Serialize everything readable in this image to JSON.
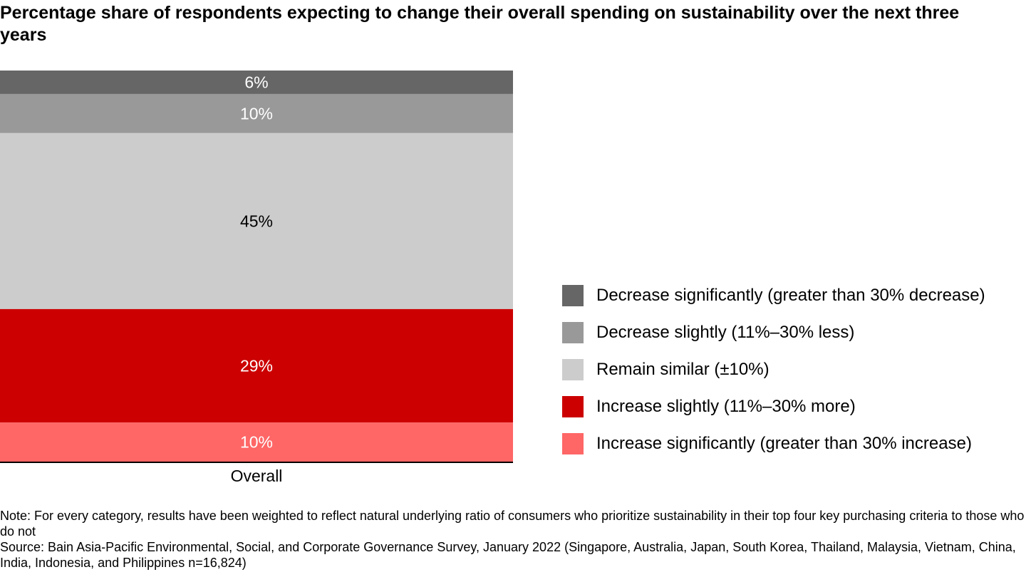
{
  "title": "Percentage share of respondents expecting to change their overall spending on sustainability over the next three years",
  "chart_data": {
    "type": "bar",
    "stacked": true,
    "orientation": "vertical",
    "categories": [
      "Overall"
    ],
    "ylim": [
      0,
      100
    ],
    "series": [
      {
        "name": "Decrease significantly (greater than 30% decrease)",
        "values": [
          6
        ],
        "label": "6%",
        "color": "#666666",
        "label_color": "#ffffff"
      },
      {
        "name": "Decrease slightly (11%–30% less)",
        "values": [
          10
        ],
        "label": "10%",
        "color": "#999999",
        "label_color": "#ffffff"
      },
      {
        "name": "Remain similar (±10%)",
        "values": [
          45
        ],
        "label": "45%",
        "color": "#cccccc",
        "label_color": "#000000"
      },
      {
        "name": "Increase slightly (11%–30% more)",
        "values": [
          29
        ],
        "label": "29%",
        "color": "#cc0000",
        "label_color": "#ffffff"
      },
      {
        "name": "Increase significantly (greater than 30% increase)",
        "values": [
          10
        ],
        "label": "10%",
        "color": "#ff6666",
        "label_color": "#ffffff"
      }
    ],
    "legend_position": "right",
    "grid": false
  },
  "note": "Note: For every category, results have been weighted to reflect natural underlying ratio of consumers who prioritize sustainability in their top four key purchasing criteria to those who do not",
  "source": "Source: Bain Asia-Pacific Environmental, Social, and Corporate Governance Survey, January 2022 (Singapore, Australia, Japan, South Korea, Thailand, Malaysia, Vietnam, China, India, Indonesia, and Philippines n=16,824)"
}
